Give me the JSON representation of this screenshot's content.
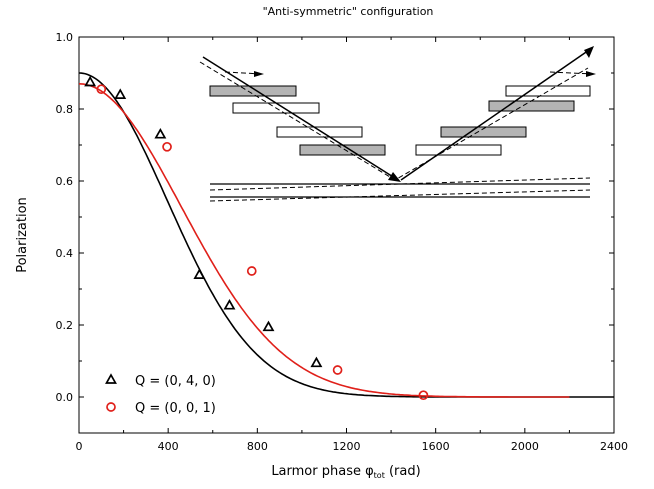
{
  "chart_data": {
    "type": "scatter",
    "title": "\"Anti-symmetric\" configuration",
    "xlabel": "Larmor phase φ",
    "xlabel_sub": "tot",
    "xlabel_unit": " (rad)",
    "ylabel": "Polarization",
    "xlim": [
      0,
      2400
    ],
    "ylim": [
      -0.1,
      1.0
    ],
    "xticks": [
      0,
      400,
      800,
      1200,
      1600,
      2000,
      2400
    ],
    "yticks": [
      0.0,
      0.2,
      0.4,
      0.6,
      0.8,
      1.0
    ],
    "xtick_labels": [
      "0",
      "400",
      "800",
      "1200",
      "1600",
      "2000",
      "2400"
    ],
    "ytick_labels": [
      "0.0",
      "0.2",
      "0.4",
      "0.6",
      "0.8",
      "1.0"
    ],
    "grid": false,
    "legend_position": "bottom-left",
    "series": [
      {
        "name": "Q = (0, 4, 0)",
        "marker": "triangle",
        "color": "#000000",
        "x": [
          50,
          185,
          365,
          540,
          675,
          850,
          1065
        ],
        "y": [
          0.875,
          0.84,
          0.73,
          0.34,
          0.255,
          0.195,
          0.095
        ]
      },
      {
        "name": "Q = (0, 0, 1)",
        "marker": "circle",
        "color": "#e0201a",
        "x": [
          100,
          395,
          775,
          1160,
          1545
        ],
        "y": [
          0.855,
          0.695,
          0.35,
          0.075,
          0.005
        ]
      }
    ],
    "fit_curves": [
      {
        "color": "#000000",
        "p0": 0.9,
        "sigma": 560,
        "x_end": 2400
      },
      {
        "color": "#e0201a",
        "p0": 0.87,
        "sigma": 650,
        "x_end": 2200
      }
    ]
  }
}
